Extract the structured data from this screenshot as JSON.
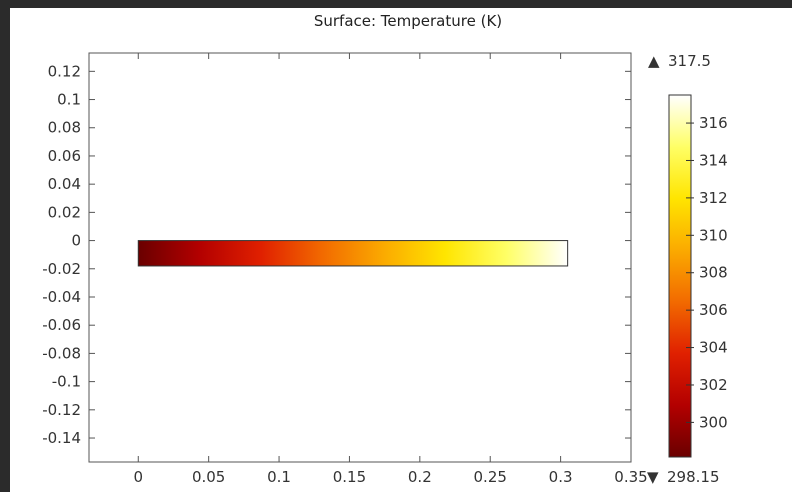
{
  "chart_data": {
    "type": "heatmap",
    "title": "Surface: Temperature (K)",
    "xlabel": "",
    "ylabel": "",
    "x_range": [
      -0.035,
      0.35
    ],
    "y_range": [
      -0.157,
      0.133
    ],
    "x_ticks": [
      0,
      0.05,
      0.1,
      0.15,
      0.2,
      0.25,
      0.3,
      0.35
    ],
    "x_tick_labels": [
      "0",
      "0.05",
      "0.1",
      "0.15",
      "0.2",
      "0.25",
      "0.3",
      "0.35"
    ],
    "y_ticks": [
      0.12,
      0.1,
      0.08,
      0.06,
      0.04,
      0.02,
      0,
      -0.02,
      -0.04,
      -0.06,
      -0.08,
      -0.1,
      -0.12,
      -0.14
    ],
    "y_tick_labels": [
      "0.12",
      "0.1",
      "0.08",
      "0.06",
      "0.04",
      "0.02",
      "0",
      "-0.02",
      "-0.04",
      "-0.06",
      "-0.08",
      "-0.1",
      "-0.12",
      "-0.14"
    ],
    "domain": {
      "x_min": 0,
      "x_max": 0.305,
      "y_min": -0.018,
      "y_max": 0
    },
    "field": {
      "quantity": "Temperature",
      "unit": "K",
      "varies_along": "x",
      "x": [
        0,
        0.305
      ],
      "value": [
        298.15,
        317.5
      ]
    },
    "colorbar": {
      "min": 298.15,
      "max": 317.5,
      "min_label": "298.15",
      "max_label": "317.5",
      "ticks": [
        300,
        302,
        304,
        306,
        308,
        310,
        312,
        314,
        316
      ],
      "tick_labels": [
        "300",
        "302",
        "304",
        "306",
        "308",
        "310",
        "312",
        "314",
        "316"
      ],
      "colormap": "heat",
      "colors": [
        "#6a0000",
        "#b30000",
        "#e02000",
        "#f26a00",
        "#fbaa00",
        "#ffe500",
        "#ffff66",
        "#ffffff"
      ],
      "max_marker": "▲",
      "min_marker": "▼"
    },
    "grid": false
  }
}
